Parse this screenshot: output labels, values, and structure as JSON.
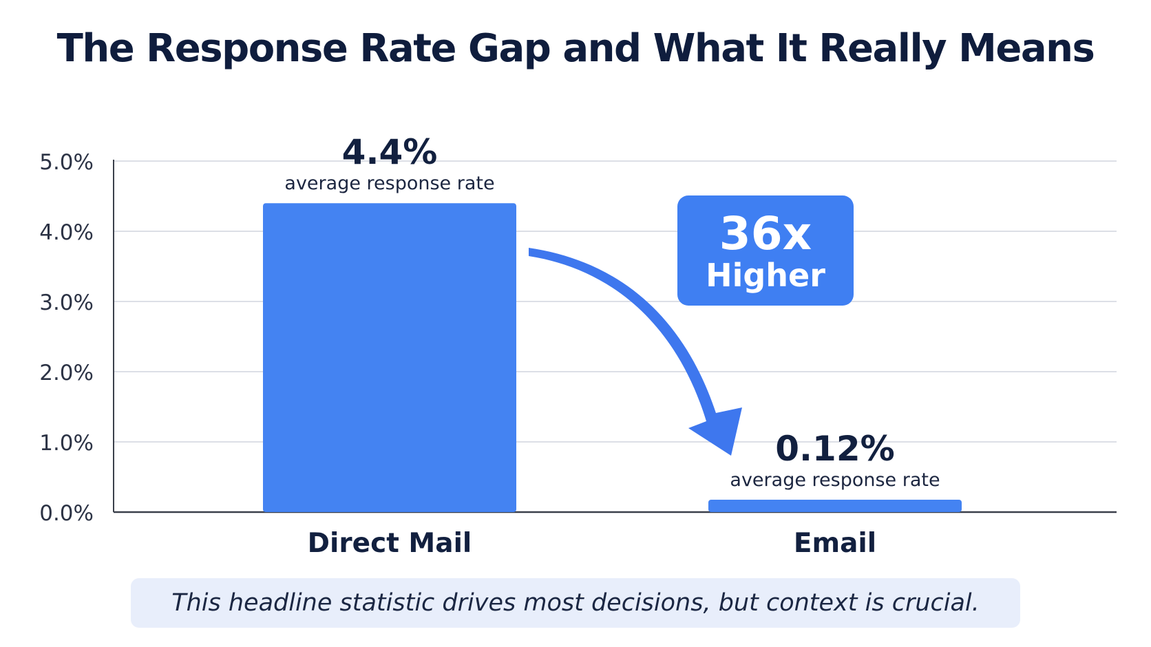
{
  "title": "The Response Rate Gap and What It Really Means",
  "caption": "This headline statistic drives most decisions, but context is crucial.",
  "callout": {
    "line1": "36x",
    "line2": "Higher"
  },
  "colors": {
    "bar": "#4483f2",
    "callout_bg": "#3f7ff2",
    "arrow": "#3e77ee",
    "title": "#0f1d3d",
    "grid": "#dcdfe6",
    "axis": "#3a3f4a",
    "caption_bg": "#e8eefb"
  },
  "chart_data": {
    "type": "bar",
    "categories": [
      "Direct Mail",
      "Email"
    ],
    "values": [
      4.4,
      0.12
    ],
    "value_labels": [
      "4.4%",
      "0.12%"
    ],
    "value_sublabels": [
      "average response rate",
      "average response rate"
    ],
    "yticks": [
      "0.0%",
      "1.0%",
      "2.0%",
      "3.0%",
      "4.0%",
      "5.0%"
    ],
    "ylim": [
      0,
      5
    ],
    "ytick_step": 1,
    "grid": true,
    "xlabel": "",
    "ylabel": ""
  }
}
